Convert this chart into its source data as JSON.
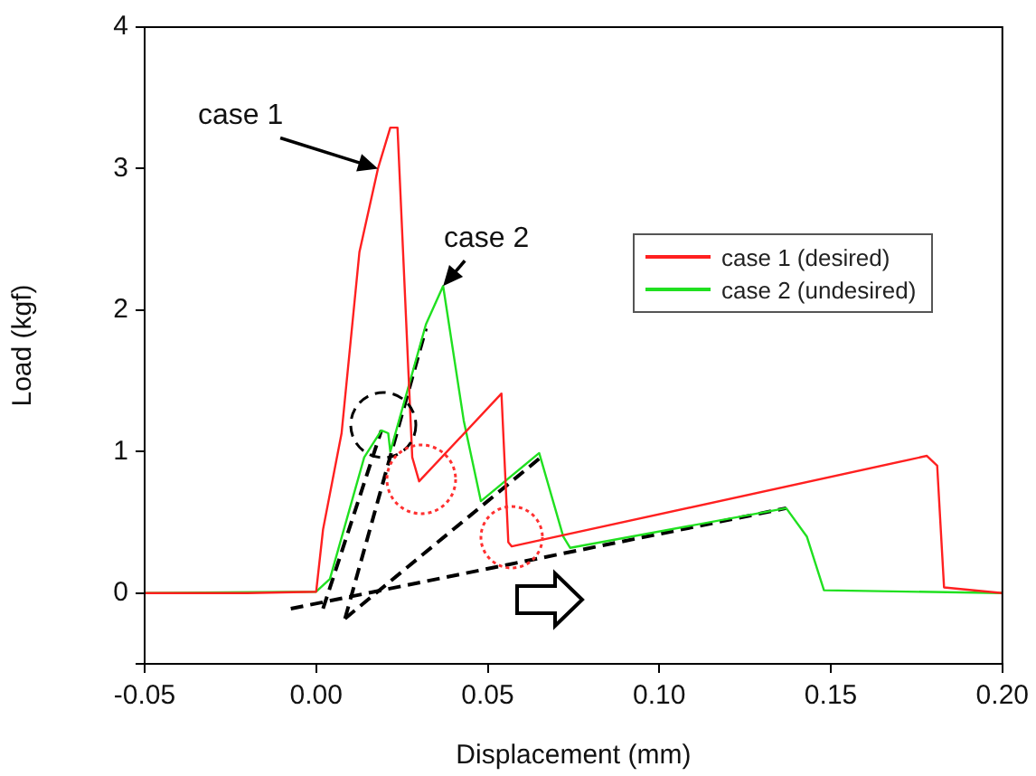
{
  "chart_data": {
    "type": "line",
    "xlabel": "Displacement (mm)",
    "ylabel": "Load (kgf)",
    "xlim": [
      -0.05,
      0.2
    ],
    "xticks": [
      {
        "value": -0.05,
        "label": "-0.05"
      },
      {
        "value": 0,
        "label": "0.00"
      },
      {
        "value": 0.05,
        "label": "0.05"
      },
      {
        "value": 0.1,
        "label": "0.10"
      },
      {
        "value": 0.15,
        "label": "0.15"
      },
      {
        "value": 0.2,
        "label": "0.20"
      }
    ],
    "ylim": [
      -0.5,
      4
    ],
    "yticks": [
      {
        "value": -0.5,
        "label": null
      },
      0,
      1,
      2,
      3,
      4
    ],
    "grid": false,
    "legend": "top right",
    "marker": "none",
    "annotations": [
      {
        "text": "case 1",
        "x": 0.018,
        "y": 3.0
      },
      {
        "text": "case 2",
        "x": 0.037,
        "y": 2.17
      }
    ],
    "series": [
      {
        "name": "case 1 (desired)",
        "color": "#ff2020",
        "x": [
          -0.05,
          -0.02,
          0.0,
          0.002,
          0.0074,
          0.0126,
          0.018,
          0.0216,
          0.0237,
          0.028,
          0.03,
          0.054,
          0.056,
          0.057,
          0.178,
          0.181,
          0.183,
          0.2
        ],
        "values": [
          0,
          0,
          0.01,
          0.45,
          1.13,
          2.41,
          3.0,
          3.29,
          3.29,
          0.96,
          0.79,
          1.41,
          0.36,
          0.33,
          0.97,
          0.9,
          0.04,
          0
        ]
      },
      {
        "name": "case 2 (undesired)",
        "color": "#20e020",
        "x": [
          -0.05,
          0.0,
          0.004,
          0.014,
          0.019,
          0.021,
          0.0216,
          0.032,
          0.037,
          0.043,
          0.048,
          0.065,
          0.072,
          0.074,
          0.137,
          0.143,
          0.148,
          0.2
        ],
        "values": [
          0,
          0.01,
          0.1,
          0.96,
          1.15,
          1.13,
          1.0,
          1.9,
          2.17,
          1.22,
          0.65,
          0.99,
          0.4,
          0.32,
          0.6,
          0.4,
          0.02,
          0
        ]
      },
      {
        "color": "#000000",
        "line_style": "dashed",
        "x": [
          0.002,
          0.019
        ],
        "values": [
          -0.11,
          1.15
        ]
      },
      {
        "color": "#000000",
        "line_style": "dashed",
        "x": [
          0.0084,
          0.032
        ],
        "values": [
          -0.18,
          1.87
        ]
      },
      {
        "color": "#000000",
        "line_style": "dashed",
        "x": [
          0.0084,
          0.065
        ],
        "values": [
          -0.18,
          0.95
        ]
      },
      {
        "color": "#000000",
        "line_style": "dashed",
        "x": [
          -0.0074,
          0.137
        ],
        "values": [
          -0.11,
          0.6
        ]
      }
    ]
  }
}
